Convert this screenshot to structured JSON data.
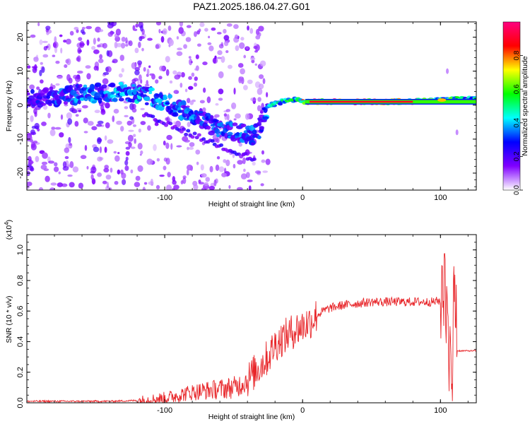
{
  "figure": {
    "title": "PAZ1.2025.186.04.27.G01"
  },
  "chart_data": [
    {
      "type": "heatmap",
      "xlabel": "Height of straight line (km)",
      "ylabel": "Frequency (Hz)",
      "xlim": [
        -200,
        126
      ],
      "ylim": [
        -25,
        24.5
      ],
      "xticks": [
        -100,
        0,
        100
      ],
      "yticks": [
        -20,
        -10,
        0,
        10,
        20
      ],
      "colorbar": {
        "label": "Normalized spectral amplitude",
        "range": [
          0,
          1
        ],
        "ticks": [
          "0.0",
          "0.2",
          "0.4",
          "0.6",
          "0.8"
        ],
        "colors": [
          "#ffffff",
          "#8000ff",
          "#0000ff",
          "#00ffff",
          "#00ff00",
          "#ffff00",
          "#ff0000",
          "#ff0080"
        ]
      },
      "ridge": [
        {
          "x": -190,
          "y": 2,
          "a": 0.25
        },
        {
          "x": -170,
          "y": 3,
          "a": 0.3
        },
        {
          "x": -150,
          "y": 3.5,
          "a": 0.35
        },
        {
          "x": -130,
          "y": 4,
          "a": 0.35
        },
        {
          "x": -110,
          "y": 2.5,
          "a": 0.35
        },
        {
          "x": -95,
          "y": 0,
          "a": 0.3
        },
        {
          "x": -80,
          "y": -3,
          "a": 0.3
        },
        {
          "x": -65,
          "y": -6,
          "a": 0.3
        },
        {
          "x": -50,
          "y": -8,
          "a": 0.3
        },
        {
          "x": -35,
          "y": -9,
          "a": 0.3
        },
        {
          "x": -30,
          "y": -6,
          "a": 0.25
        },
        {
          "x": -25,
          "y": 0,
          "a": 0.35
        },
        {
          "x": -15,
          "y": 1,
          "a": 0.45
        },
        {
          "x": -5,
          "y": 1.5,
          "a": 0.55
        },
        {
          "x": 5,
          "y": 1,
          "a": 0.85
        },
        {
          "x": 30,
          "y": 1,
          "a": 0.9
        },
        {
          "x": 60,
          "y": 1,
          "a": 0.85
        },
        {
          "x": 90,
          "y": 1.2,
          "a": 0.7
        },
        {
          "x": 105,
          "y": 1.5,
          "a": 0.5
        },
        {
          "x": 125,
          "y": 2,
          "a": 0.45
        }
      ]
    },
    {
      "type": "line",
      "xlabel": "Height of straight line (km)",
      "ylabel": "SNR (10 * v/v)",
      "yscale_label": "(x10^4)",
      "yscale_base": "(x10",
      "yscale_exp": "4",
      "yscale_close": ")",
      "xlim": [
        -200,
        126
      ],
      "ylim": [
        0,
        1.1
      ],
      "xticks": [
        -100,
        0,
        100
      ],
      "yticks": [
        0,
        0.2,
        0.4,
        0.6,
        0.8,
        1.0
      ],
      "ytick_labels": [
        "0.0",
        "0.2",
        "0.4",
        "0.6",
        "0.8",
        "1.0"
      ],
      "line_color": "#e8262a",
      "series": [
        {
          "x": [
            -200,
            -180,
            -160,
            -140,
            -120,
            -100,
            -90,
            -80,
            -70,
            -60,
            -50,
            -45,
            -40,
            -35,
            -30,
            -25,
            -20,
            -15,
            -10,
            -5,
            0,
            5,
            10,
            15,
            20,
            25,
            30,
            40,
            50,
            55,
            60,
            70,
            80,
            90,
            95,
            100,
            103,
            106,
            108,
            110,
            112,
            115,
            126
          ],
          "y": [
            0.01,
            0.01,
            0.01,
            0.01,
            0.015,
            0.03,
            0.05,
            0.07,
            0.08,
            0.09,
            0.1,
            0.12,
            0.15,
            0.2,
            0.25,
            0.3,
            0.38,
            0.42,
            0.45,
            0.48,
            0.5,
            0.53,
            0.57,
            0.6,
            0.62,
            0.63,
            0.64,
            0.65,
            0.66,
            0.66,
            0.66,
            0.66,
            0.66,
            0.66,
            0.66,
            0.67,
            0.8,
            0.5,
            0.05,
            0.9,
            0.34,
            0.34,
            0.34
          ]
        }
      ]
    }
  ]
}
